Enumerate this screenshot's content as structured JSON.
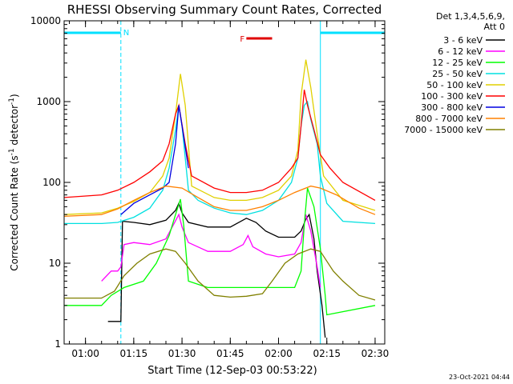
{
  "chart_data": {
    "type": "line",
    "title": "RHESSI Observing Summary Count Rates, Corrected",
    "xlabel": "Start Time (12-Sep-03 00:53:22)",
    "ylabel": "Corrected Count Rate (s-1 detector-1)",
    "ylabel_parts": {
      "main": "Corrected Count Rate (s",
      "sup1": "-1",
      "mid": " detector",
      "sup2": "-1",
      "end": ")"
    },
    "y_scale": "log",
    "ylim": [
      1,
      10000
    ],
    "y_ticks": [
      1,
      10,
      100,
      1000,
      10000
    ],
    "y_tick_labels": [
      "1",
      "10",
      "100",
      "1000",
      "10000"
    ],
    "xlim": [
      "00:53:22",
      "02:33:00"
    ],
    "x_ticks": [
      "01:00",
      "01:15",
      "01:30",
      "01:45",
      "02:00",
      "02:15",
      "02:30"
    ],
    "legend_header": [
      "Det 1,3,4,5,6,9,",
      "Att 0"
    ],
    "legend_position": "right",
    "timestamp": "23-Oct-2021 04:44",
    "grid": false,
    "night_bars": [
      {
        "label": "N",
        "start": "00:53:22",
        "end": "01:11:00"
      },
      {
        "label": "",
        "start": "02:13:00",
        "end": "02:33:00"
      }
    ],
    "flare_flag": {
      "label": "F",
      "start": "01:50:00",
      "end": "01:58:00",
      "color": "#e00000"
    },
    "night_color": "#00e0ff",
    "series": [
      {
        "name": "3 - 6 keV",
        "color": "#000000",
        "x": [
          "00:53:22",
          "01:07:00",
          "01:11:00",
          "01:11:30",
          "01:15:00",
          "01:20:00",
          "01:25:00",
          "01:28:00",
          "01:29:00",
          "01:30:00",
          "01:32:00",
          "01:38:00",
          "01:45:00",
          "01:50:00",
          "01:53:00",
          "01:56:00",
          "02:00:00",
          "02:05:00",
          "02:07:00",
          "02:08:30",
          "02:09:30",
          "02:11:00",
          "02:12:00",
          "02:13:30",
          "02:14:30"
        ],
        "y": [
          null,
          1.9,
          1.9,
          33,
          32,
          30,
          34,
          45,
          55,
          42,
          32,
          28,
          28,
          36,
          32,
          25,
          21,
          21,
          25,
          35,
          40,
          20,
          8,
          3,
          1.2
        ]
      },
      {
        "name": "6 - 12 keV",
        "color": "#ff00ff",
        "x": [
          "01:05:00",
          "01:08:00",
          "01:10:00",
          "01:11:00",
          "01:12:00",
          "01:15:00",
          "01:20:00",
          "01:25:00",
          "01:29:00",
          "01:30:00",
          "01:32:00",
          "01:38:00",
          "01:45:00",
          "01:49:00",
          "01:50:30",
          "01:52:00",
          "01:56:00",
          "02:00:00",
          "02:05:00",
          "02:07:00",
          "02:08:30",
          "02:10:00",
          "02:12:00",
          "02:13:00"
        ],
        "y": [
          6,
          8,
          8,
          9,
          17,
          18,
          17,
          20,
          40,
          28,
          18,
          14,
          14,
          17,
          22,
          16,
          13,
          12,
          13,
          18,
          40,
          25,
          9,
          5
        ]
      },
      {
        "name": "12 - 25 keV",
        "color": "#00ff00",
        "x": [
          "00:53:22",
          "01:05:00",
          "01:08:00",
          "01:12:00",
          "01:18:00",
          "01:22:00",
          "01:26:00",
          "01:28:00",
          "01:29:30",
          "01:30:30",
          "01:32:00",
          "01:38:00",
          "01:45:00",
          "01:55:00",
          "02:00:00",
          "02:05:00",
          "02:07:00",
          "02:08:00",
          "02:09:00",
          "02:11:00",
          "02:13:00",
          "02:14:30",
          "02:15:00",
          "02:30:00"
        ],
        "y": [
          3,
          3,
          4,
          5,
          6,
          10,
          22,
          40,
          62,
          30,
          6,
          5,
          5,
          5,
          5,
          5,
          8,
          30,
          85,
          50,
          15,
          4,
          2.3,
          3
        ]
      },
      {
        "name": "25 - 50 keV",
        "color": "#00e0e0",
        "x": [
          "00:53:22",
          "01:05:00",
          "01:10:00",
          "01:15:00",
          "01:20:00",
          "01:24:00",
          "01:26:00",
          "01:28:00",
          "01:29:00",
          "01:30:00",
          "01:32:00",
          "01:35:00",
          "01:40:00",
          "01:45:00",
          "01:50:00",
          "01:55:00",
          "02:00:00",
          "02:04:00",
          "02:06:00",
          "02:07:00",
          "02:08:00",
          "02:09:00",
          "02:10:00",
          "02:12:00",
          "02:13:00",
          "02:15:00",
          "02:20:00",
          "02:30:00"
        ],
        "y": [
          31,
          31,
          32,
          37,
          48,
          80,
          150,
          450,
          900,
          500,
          80,
          60,
          48,
          42,
          40,
          45,
          60,
          100,
          200,
          500,
          900,
          1000,
          600,
          300,
          120,
          55,
          33,
          31
        ]
      },
      {
        "name": "50 - 100 keV",
        "color": "#e0d000",
        "x": [
          "00:53:22",
          "01:05:00",
          "01:10:00",
          "01:15:00",
          "01:20:00",
          "01:24:00",
          "01:26:00",
          "01:28:00",
          "01:29:30",
          "01:31:00",
          "01:33:00",
          "01:40:00",
          "01:45:00",
          "01:50:00",
          "01:55:00",
          "02:00:00",
          "02:04:00",
          "02:06:00",
          "02:07:00",
          "02:08:30",
          "02:10:00",
          "02:12:00",
          "02:14:00",
          "02:20:00",
          "02:30:00"
        ],
        "y": [
          40,
          42,
          48,
          58,
          75,
          120,
          200,
          700,
          2200,
          900,
          90,
          65,
          60,
          60,
          65,
          80,
          120,
          250,
          1200,
          3300,
          1500,
          400,
          120,
          60,
          45
        ]
      },
      {
        "name": "100 - 300 keV",
        "color": "#ff0000",
        "x": [
          "00:53:22",
          "01:05:00",
          "01:10:00",
          "01:15:00",
          "01:20:00",
          "01:24:00",
          "01:26:00",
          "01:28:00",
          "01:29:00",
          "01:31:00",
          "01:33:00",
          "01:40:00",
          "01:45:00",
          "01:50:00",
          "01:55:00",
          "02:00:00",
          "02:04:00",
          "02:06:00",
          "02:07:00",
          "02:08:00",
          "02:09:00",
          "02:11:00",
          "02:13:00",
          "02:16:00",
          "02:20:00",
          "02:30:00"
        ],
        "y": [
          65,
          70,
          80,
          100,
          135,
          185,
          300,
          700,
          900,
          300,
          120,
          85,
          75,
          75,
          80,
          100,
          150,
          200,
          500,
          1400,
          900,
          450,
          220,
          150,
          100,
          60
        ]
      },
      {
        "name": "300 - 800 keV",
        "color": "#0000e0",
        "x": [
          "01:11:00",
          "01:15:00",
          "01:20:00",
          "01:24:00",
          "01:26:00",
          "01:28:00",
          "01:29:00",
          "01:30:00",
          "01:32:00"
        ],
        "y": [
          40,
          55,
          70,
          85,
          100,
          300,
          900,
          500,
          150
        ]
      },
      {
        "name": "800 - 7000 keV",
        "color": "#ff8000",
        "x": [
          "00:53:22",
          "01:05:00",
          "01:10:00",
          "01:15:00",
          "01:20:00",
          "01:25:00",
          "01:30:00",
          "01:35:00",
          "01:40:00",
          "01:45:00",
          "01:50:00",
          "01:55:00",
          "02:00:00",
          "02:05:00",
          "02:10:00",
          "02:13:00",
          "02:18:00",
          "02:25:00",
          "02:30:00"
        ],
        "y": [
          38,
          40,
          47,
          60,
          75,
          90,
          85,
          65,
          50,
          45,
          45,
          50,
          60,
          75,
          90,
          85,
          70,
          48,
          40
        ]
      },
      {
        "name": "7000 - 15000 keV",
        "color": "#808000",
        "x": [
          "00:53:22",
          "01:05:00",
          "01:09:00",
          "01:12:00",
          "01:16:00",
          "01:20:00",
          "01:25:00",
          "01:28:00",
          "01:31:00",
          "01:35:00",
          "01:40:00",
          "01:45:00",
          "01:50:00",
          "01:55:00",
          "01:58:00",
          "02:02:00",
          "02:06:00",
          "02:10:00",
          "02:13:00",
          "02:17:00",
          "02:20:00",
          "02:25:00",
          "02:30:00"
        ],
        "y": [
          3.7,
          3.7,
          4.5,
          7,
          10,
          13,
          15,
          14,
          10,
          6,
          4,
          3.8,
          3.9,
          4.2,
          6,
          10,
          13,
          15,
          14,
          8,
          6,
          4,
          3.5
        ]
      }
    ]
  }
}
